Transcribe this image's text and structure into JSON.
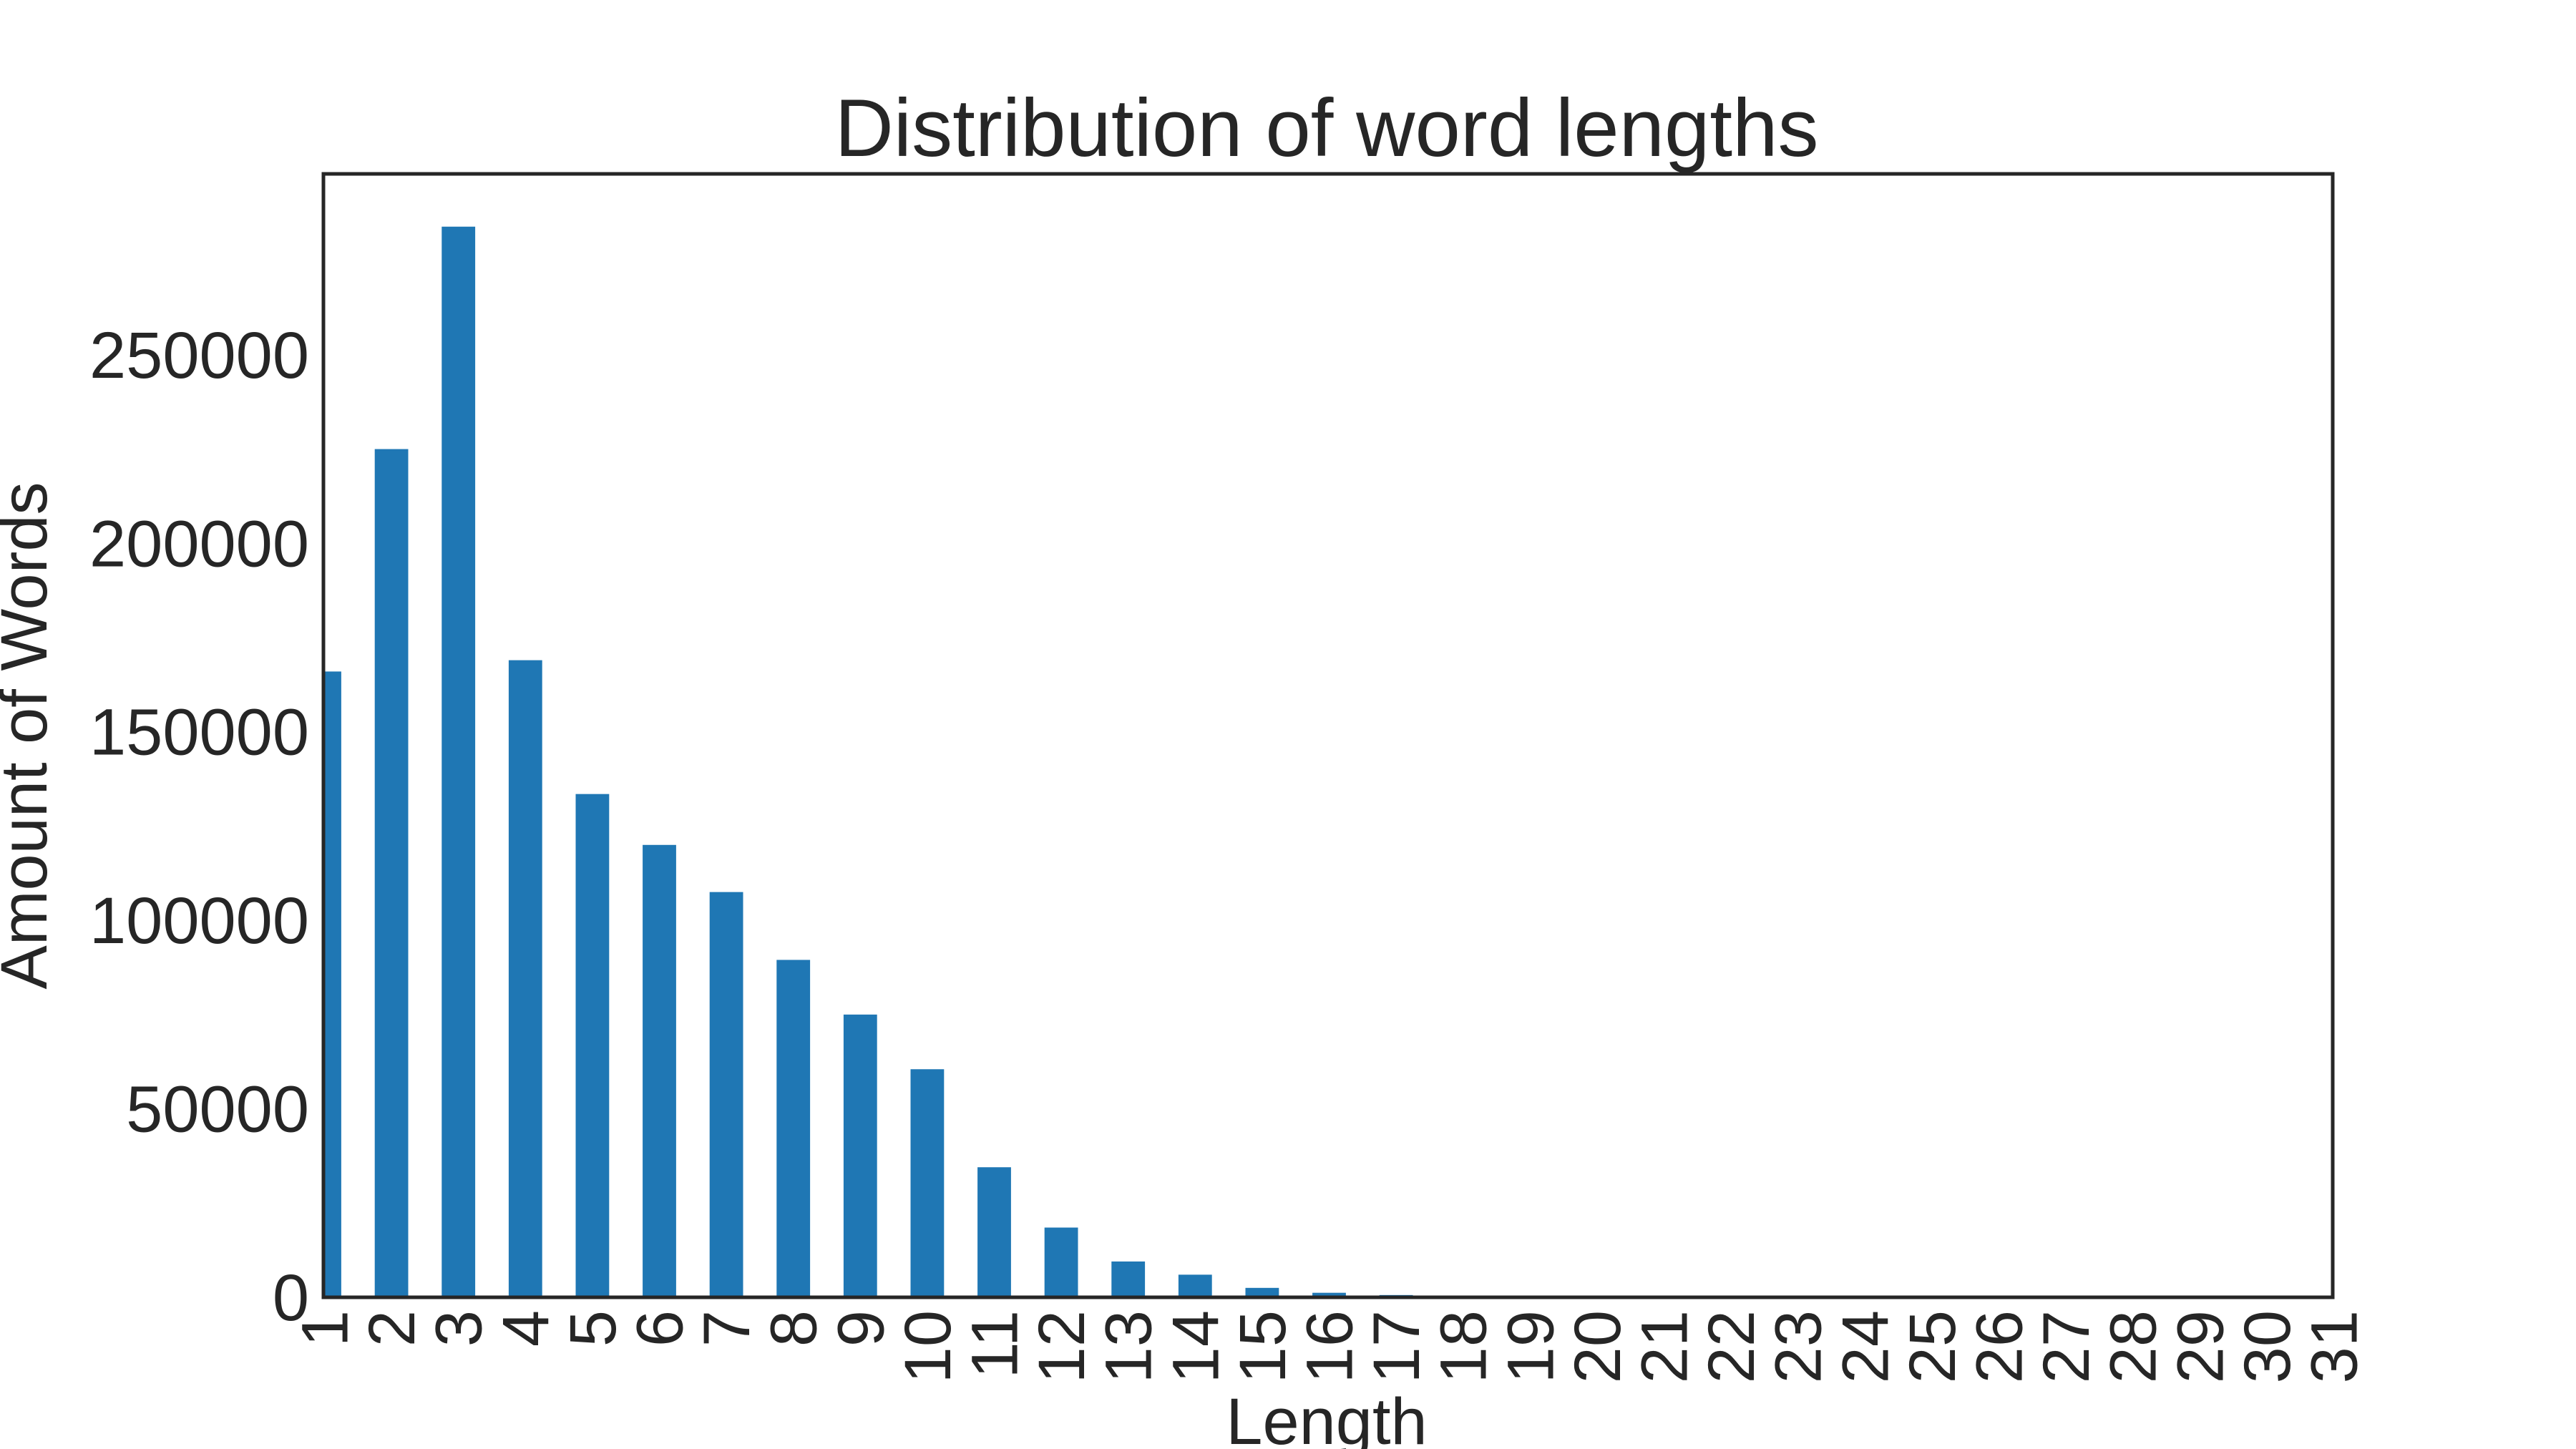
{
  "chart_data": {
    "type": "bar",
    "title": "Distribution of word lengths",
    "xlabel": "Length",
    "ylabel": "Amount of Words",
    "categories": [
      "1",
      "2",
      "3",
      "4",
      "5",
      "6",
      "7",
      "8",
      "9",
      "10",
      "11",
      "12",
      "13",
      "14",
      "15",
      "16",
      "17",
      "18",
      "19",
      "20",
      "21",
      "22",
      "23",
      "24",
      "25",
      "26",
      "27",
      "28",
      "29",
      "30",
      "31"
    ],
    "values": [
      166000,
      225000,
      284000,
      169000,
      133500,
      120000,
      107500,
      89500,
      75000,
      60500,
      34500,
      18500,
      9500,
      6000,
      2500,
      1200,
      600,
      400,
      250,
      150,
      100,
      50,
      30,
      20,
      15,
      10,
      8,
      5,
      3,
      2,
      1
    ],
    "yticks": [
      "0",
      "50000",
      "100000",
      "150000",
      "200000",
      "250000"
    ],
    "ylim": [
      0,
      298000
    ],
    "bar_color": "#1f77b4",
    "grid": false,
    "legend": null
  }
}
